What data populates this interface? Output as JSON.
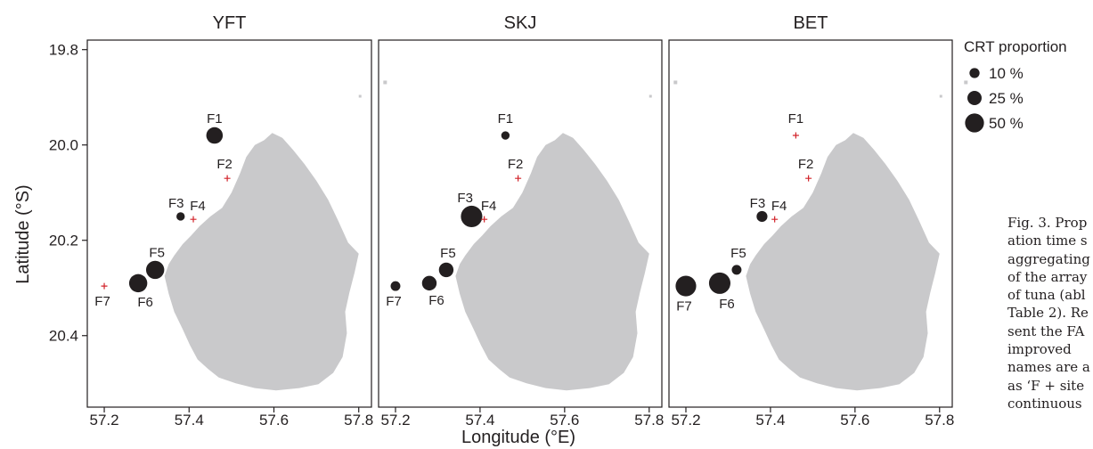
{
  "chart_data": {
    "type": "scatter",
    "xlabel": "Longitude (°E)",
    "ylabel": "Latitude (°S)",
    "xticks": [
      "57.2",
      "57.4",
      "57.6",
      "57.8"
    ],
    "yticks": [
      "19.8",
      "20.0",
      "20.2",
      "20.4"
    ],
    "xlim": [
      57.16,
      57.83
    ],
    "ylim": [
      20.55,
      19.78
    ],
    "grid": false,
    "legend": {
      "title": "CRT proportion",
      "placement": "top-right",
      "entries": [
        {
          "label": "10 %",
          "value": 10
        },
        {
          "label": "25 %",
          "value": 25
        },
        {
          "label": "50 %",
          "value": 50
        }
      ]
    },
    "sites": [
      {
        "name": "F1",
        "lon": 57.46,
        "lat": 19.98
      },
      {
        "name": "F2",
        "lon": 57.49,
        "lat": 20.07
      },
      {
        "name": "F3",
        "lon": 57.38,
        "lat": 20.15
      },
      {
        "name": "F4",
        "lon": 57.41,
        "lat": 20.156
      },
      {
        "name": "F5",
        "lon": 57.32,
        "lat": 20.262
      },
      {
        "name": "F6",
        "lon": 57.28,
        "lat": 20.29
      },
      {
        "name": "F7",
        "lon": 57.2,
        "lat": 20.296
      }
    ],
    "panels": [
      {
        "title": "YFT",
        "values": {
          "F1": 22,
          "F2": 0,
          "F3": 3,
          "F4": 0,
          "F5": 28,
          "F6": 28,
          "F7": 0
        }
      },
      {
        "title": "SKJ",
        "values": {
          "F1": 3,
          "F2": 0,
          "F3": 42,
          "F4": 0,
          "F5": 16,
          "F6": 16,
          "F7": 5
        }
      },
      {
        "title": "BET",
        "values": {
          "F1": 0,
          "F2": 0,
          "F3": 7,
          "F4": 0,
          "F5": 5,
          "F6": 42,
          "F7": 38
        }
      }
    ]
  },
  "colors": {
    "point": "#231f20",
    "absent_marker": "#d2232a",
    "land": "#c9c9cb",
    "axis": "#231f20"
  },
  "caption_lines": [
    "Fig. 3. Prop",
    "ation time s",
    "aggregating",
    "of the array",
    "of tuna (abl",
    "Table 2). Re",
    "sent the FA",
    "improved",
    "names are a",
    "as ‘F + site",
    "continuous"
  ]
}
